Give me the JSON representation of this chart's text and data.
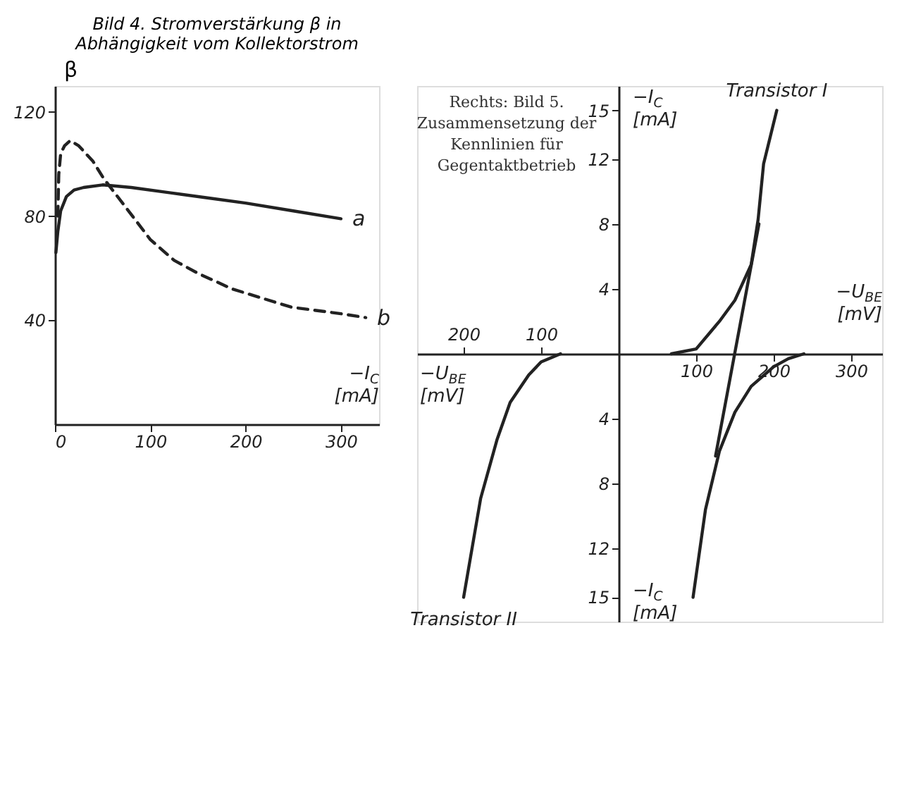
{
  "chart_data": [
    {
      "type": "line",
      "title": "Bild 4. Stromverstärkung β in Abhängigkeit vom Kollektorstrom",
      "xlabel": "−I$_{C}$ [mA]",
      "ylabel": "β",
      "xlim": [
        0,
        340
      ],
      "ylim": [
        0,
        130
      ],
      "xticks": [
        0,
        100,
        200,
        300
      ],
      "yticks": [
        40,
        80,
        120
      ],
      "grid": false,
      "legend": false,
      "series": [
        {
          "name": "a",
          "color": "#222222",
          "line_style": "solid",
          "x": [
            1,
            3,
            6,
            12,
            20,
            30,
            50,
            80,
            120,
            160,
            200,
            250,
            300
          ],
          "values": [
            66,
            74,
            82,
            87.5,
            90,
            91,
            92,
            91,
            89,
            87,
            85,
            82,
            79
          ]
        },
        {
          "name": "b",
          "color": "#222222",
          "line_style": "dashed",
          "x": [
            3,
            4,
            6,
            10,
            16,
            25,
            40,
            51,
            73,
            100,
            125,
            150,
            186,
            248,
            300,
            326
          ],
          "values": [
            80,
            96,
            104,
            107,
            109,
            107,
            101,
            94.5,
            84,
            71,
            63,
            58,
            52,
            45,
            42.5,
            41
          ]
        }
      ]
    },
    {
      "type": "line",
      "xlabel": "−U$_{BE}$ [mV]",
      "ylabel": "−I$_{C}$ [mA]",
      "annotations": [
        "Rechts: Bild 5. Zusammensetzung der Kennlinien für Gegentaktbetrieb",
        "−U$_{BE}$ [mV]"
      ],
      "xlim": [
        -260,
        340
      ],
      "ylim": [
        -16.5,
        16.5
      ],
      "xticks": [
        100,
        200,
        300
      ],
      "x2lim": [
        -260,
        340
      ],
      "x2ticks": [
        {
          "value": -200,
          "label": "200"
        },
        {
          "value": -100,
          "label": "100"
        }
      ],
      "yticks": [
        {
          "value": -15,
          "label": "15"
        },
        {
          "value": -12,
          "label": "12"
        },
        {
          "value": -8,
          "label": "8"
        },
        {
          "value": -4,
          "label": "4"
        },
        4,
        8,
        12,
        15
      ],
      "grid": false,
      "legend": false,
      "series": [
        {
          "name": "Transistor I",
          "color": "#222222",
          "line_style": "solid",
          "x": [
            68,
            100,
            130,
            150,
            171,
            180,
            187,
            204
          ],
          "values": [
            0,
            0.3,
            2,
            3.3,
            5.5,
            8.3,
            11.7,
            15
          ]
        },
        {
          "color": "#222222",
          "line_style": "solid",
          "x": [
            239,
            219,
            200,
            171,
            150,
            130,
            112,
            96
          ],
          "values": [
            0,
            -0.3,
            -0.8,
            -2,
            -3.6,
            -6,
            -9.6,
            -15
          ]
        },
        {
          "color": "#222222",
          "line_style": "solid",
          "x": [
            181,
            125
          ],
          "values": [
            8,
            -6.3
          ]
        },
        {
          "name": "Transistor II",
          "color": "#222222",
          "line_style": "solid",
          "x": [
            -75,
            -100,
            -116,
            -140,
            -157,
            -178,
            -191,
            -200
          ],
          "values": [
            0,
            -0.5,
            -1.3,
            -3,
            -5.3,
            -8.9,
            -12.5,
            -15
          ]
        }
      ]
    }
  ]
}
